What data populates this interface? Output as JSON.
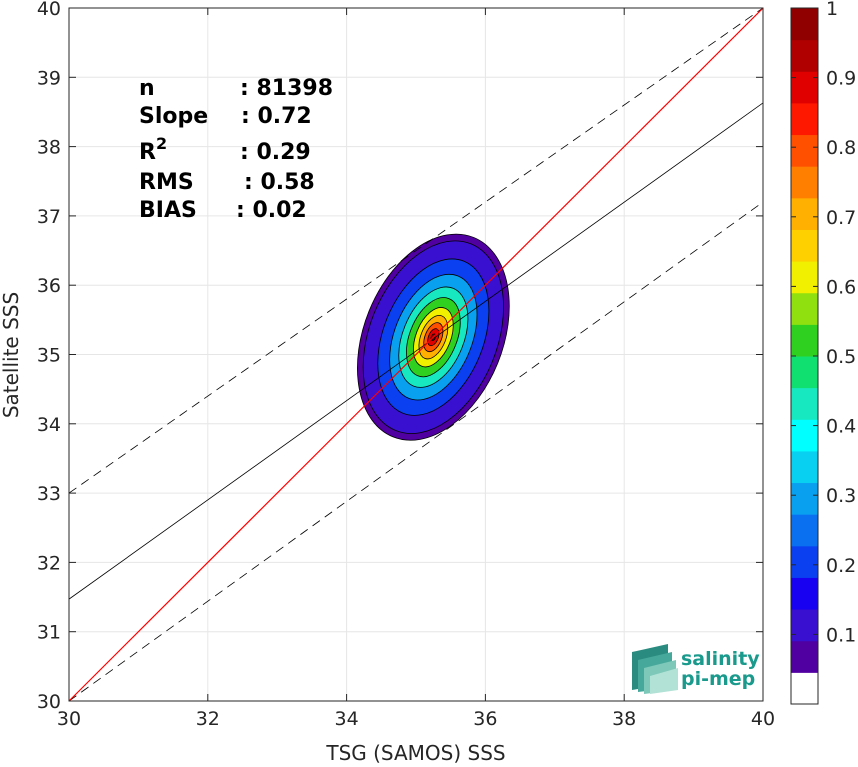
{
  "chart_data": {
    "type": "contour-density-scatter",
    "xlabel": "TSG (SAMOS) SSS",
    "ylabel": "Satellite SSS",
    "xlim": [
      30,
      40
    ],
    "ylim": [
      30,
      40
    ],
    "x_ticks": [
      "30",
      "32",
      "34",
      "36",
      "38",
      "40"
    ],
    "y_ticks": [
      "30",
      "31",
      "32",
      "33",
      "34",
      "35",
      "36",
      "37",
      "38",
      "39",
      "40"
    ],
    "grid": true,
    "stats": [
      {
        "label": "n",
        "value": ": 81398"
      },
      {
        "label": "Slope",
        "value": ": 0.72"
      },
      {
        "label": "R",
        "sup": "2",
        "value": ": 0.29"
      },
      {
        "label": "RMS",
        "value": ": 0.58"
      },
      {
        "label": "BIAS",
        "value": ": 0.02"
      }
    ],
    "one_to_one_line": {
      "color": "#ff0000",
      "x": [
        30,
        40
      ],
      "y": [
        30,
        40
      ]
    },
    "regression_line": {
      "color": "#000000",
      "x": [
        30,
        40
      ],
      "y": [
        31.47,
        38.63
      ]
    },
    "error_bounds": [
      {
        "style": "dashed",
        "x": [
          30,
          40
        ],
        "y": [
          33.0,
          40.0
        ]
      },
      {
        "style": "dashed",
        "x": [
          30,
          40
        ],
        "y": [
          30.0,
          37.2
        ]
      }
    ],
    "density_center": {
      "x": 35.25,
      "y": 35.25
    },
    "density_contours": [
      {
        "level": 0.05,
        "color": "#5000a0",
        "rx": 1.55,
        "ry": 1.0
      },
      {
        "level": 0.1,
        "color": "#3a10d0",
        "rx": 1.45,
        "ry": 0.92
      },
      {
        "level": 0.2,
        "color": "#0a40f0",
        "rx": 1.18,
        "ry": 0.72
      },
      {
        "level": 0.3,
        "color": "#0aa0f0",
        "rx": 0.95,
        "ry": 0.56
      },
      {
        "level": 0.4,
        "color": "#18e8c0",
        "rx": 0.76,
        "ry": 0.44
      },
      {
        "level": 0.5,
        "color": "#30d020",
        "rx": 0.6,
        "ry": 0.34
      },
      {
        "level": 0.6,
        "color": "#f0f000",
        "rx": 0.45,
        "ry": 0.25
      },
      {
        "level": 0.7,
        "color": "#ffb000",
        "rx": 0.33,
        "ry": 0.18
      },
      {
        "level": 0.8,
        "color": "#ff5000",
        "rx": 0.22,
        "ry": 0.12
      },
      {
        "level": 0.9,
        "color": "#e00000",
        "rx": 0.13,
        "ry": 0.07
      },
      {
        "level": 1.0,
        "color": "#900000",
        "rx": 0.05,
        "ry": 0.03
      }
    ],
    "colorbar": {
      "min": 0,
      "max": 1,
      "tick_labels": [
        "0.1",
        "0.2",
        "0.3",
        "0.4",
        "0.5",
        "0.6",
        "0.7",
        "0.8",
        "0.9",
        "1"
      ],
      "tick_values": [
        0.1,
        0.2,
        0.3,
        0.4,
        0.5,
        0.6,
        0.7,
        0.8,
        0.9,
        1.0
      ],
      "colors": [
        "#ffffff",
        "#5000a0",
        "#3a10d0",
        "#1800f0",
        "#0a40f0",
        "#0a70f0",
        "#0aa0f0",
        "#08d0f0",
        "#00ffff",
        "#18e8c0",
        "#10e070",
        "#30d020",
        "#90e010",
        "#f0f000",
        "#ffd000",
        "#ffb000",
        "#ff8000",
        "#ff5000",
        "#ff1800",
        "#e00000",
        "#b00000",
        "#900000"
      ]
    },
    "logo": {
      "line1": "salinity",
      "line2": "pi-mep"
    }
  }
}
